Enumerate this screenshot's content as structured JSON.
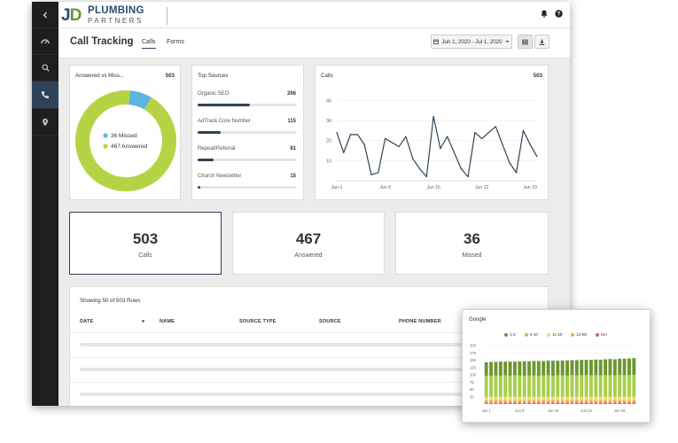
{
  "brand": {
    "logo_mark": "JD",
    "name_line1": "PLUMBING",
    "name_line2": "PARTNERS"
  },
  "sidebar": {
    "items": [
      {
        "name": "back",
        "icon": "chevron-left-icon",
        "active": false
      },
      {
        "name": "dashboard",
        "icon": "speedometer-icon",
        "active": false
      },
      {
        "name": "search",
        "icon": "search-icon",
        "active": false
      },
      {
        "name": "calls",
        "icon": "phone-icon",
        "active": true
      },
      {
        "name": "locations",
        "icon": "map-pin-icon",
        "active": false
      }
    ]
  },
  "header": {
    "title": "Call Tracking",
    "tabs": [
      {
        "label": "Calls",
        "active": true
      },
      {
        "label": "Forms",
        "active": false
      }
    ],
    "date_range": "Jun 1, 2020 - Jul 1, 2020",
    "icons": [
      "bell-icon",
      "help-icon",
      "columns-icon",
      "download-icon"
    ]
  },
  "answered_card": {
    "title": "Answered vs Miss...",
    "total": "503",
    "legend": [
      {
        "label": "36 Missed",
        "color": "#5bb5e0"
      },
      {
        "label": "467 Answered",
        "color": "#b5d445"
      }
    ]
  },
  "top_sources": {
    "title": "Top Sources",
    "items": [
      {
        "label": "Organic SEO",
        "value": "266",
        "fraction": 0.53
      },
      {
        "label": "AdTrack Core Number",
        "value": "115",
        "fraction": 0.23
      },
      {
        "label": "Repeat/Referral",
        "value": "81",
        "fraction": 0.16
      },
      {
        "label": "Church Newsletter",
        "value": "15",
        "fraction": 0.03
      }
    ]
  },
  "calls_card": {
    "title": "Calls",
    "total": "503"
  },
  "kpis": [
    {
      "value": "503",
      "label": "Calls",
      "selected": true
    },
    {
      "value": "467",
      "label": "Answered",
      "selected": false
    },
    {
      "value": "36",
      "label": "Missed",
      "selected": false
    }
  ],
  "table": {
    "summary": "Showing 50 of 503 Rows",
    "columns": [
      "DATE",
      "NAME",
      "SOURCE TYPE",
      "SOURCE",
      "PHONE NUMBER"
    ]
  },
  "colors": {
    "accent": "#2e4358",
    "missed": "#5bb5e0",
    "answered": "#b5d445"
  },
  "chart_data": [
    {
      "type": "pie",
      "title": "Answered vs Miss...",
      "categories": [
        "Missed",
        "Answered"
      ],
      "values": [
        36,
        467
      ],
      "colors": [
        "#5bb5e0",
        "#b5d445"
      ]
    },
    {
      "type": "line",
      "title": "Calls",
      "x": [
        "Jun 1",
        "Jun 2",
        "Jun 3",
        "Jun 4",
        "Jun 5",
        "Jun 6",
        "Jun 7",
        "Jun 8",
        "Jun 9",
        "Jun 10",
        "Jun 11",
        "Jun 12",
        "Jun 13",
        "Jun 14",
        "Jun 15",
        "Jun 16",
        "Jun 17",
        "Jun 18",
        "Jun 19",
        "Jun 20",
        "Jun 21",
        "Jun 22",
        "Jun 23",
        "Jun 24",
        "Jun 25",
        "Jun 26",
        "Jun 27",
        "Jun 28",
        "Jun 29",
        "Jun 30"
      ],
      "values": [
        24,
        14,
        23,
        23,
        18,
        3,
        4,
        21,
        19,
        17,
        22,
        11,
        6,
        2,
        32,
        16,
        22,
        14,
        6,
        2,
        24,
        21,
        24,
        27,
        18,
        9,
        4,
        25,
        18,
        12
      ],
      "xticks": [
        "Jun 1",
        "Jun 8",
        "Jun 15",
        "Jun 22",
        "Jun 29"
      ],
      "yticks": [
        10,
        20,
        30,
        40
      ],
      "ylim": [
        0,
        45
      ],
      "color": "#2e4358"
    },
    {
      "type": "bar",
      "title": "Google",
      "stacked": true,
      "xticks": [
        "Jun 1",
        "Jun 8",
        "Jun 15",
        "Jun 22",
        "Jun 29"
      ],
      "yticks": [
        25,
        50,
        75,
        100,
        125,
        150,
        175,
        200
      ],
      "ylim": [
        0,
        200
      ],
      "series": [
        {
          "name": "51+",
          "color": "#e06060",
          "values": [
            5,
            5,
            5,
            5,
            5,
            5,
            5,
            5,
            5,
            5,
            5,
            5,
            5,
            5,
            5,
            5,
            5,
            5,
            5,
            5,
            5,
            5,
            5,
            5,
            5,
            5,
            5,
            5,
            5,
            5,
            5,
            5
          ]
        },
        {
          "name": "21-50",
          "color": "#f2a94c",
          "values": [
            8,
            8,
            8,
            8,
            8,
            8,
            8,
            8,
            8,
            8,
            8,
            8,
            8,
            8,
            8,
            8,
            8,
            8,
            8,
            8,
            8,
            8,
            8,
            8,
            8,
            8,
            8,
            8,
            8,
            8,
            8,
            8
          ]
        },
        {
          "name": "11-20",
          "color": "#e8dd6a",
          "values": [
            12,
            12,
            12,
            12,
            12,
            12,
            12,
            12,
            12,
            12,
            12,
            12,
            12,
            12,
            12,
            12,
            12,
            12,
            12,
            12,
            12,
            12,
            12,
            12,
            12,
            12,
            12,
            12,
            12,
            12,
            12,
            12
          ]
        },
        {
          "name": "4-10",
          "color": "#a8cf4b",
          "values": [
            72,
            72,
            73,
            72,
            73,
            72,
            73,
            73,
            72,
            73,
            73,
            72,
            73,
            73,
            72,
            73,
            73,
            72,
            74,
            73,
            73,
            74,
            73,
            74,
            73,
            74,
            74,
            73,
            74,
            74,
            74,
            75
          ]
        },
        {
          "name": "1-3",
          "color": "#6c9630",
          "values": [
            46,
            47,
            46,
            48,
            47,
            48,
            47,
            48,
            49,
            48,
            49,
            50,
            49,
            50,
            51,
            50,
            51,
            52,
            51,
            52,
            53,
            52,
            53,
            53,
            54,
            54,
            55,
            55,
            56,
            56,
            57,
            57
          ]
        }
      ]
    }
  ]
}
